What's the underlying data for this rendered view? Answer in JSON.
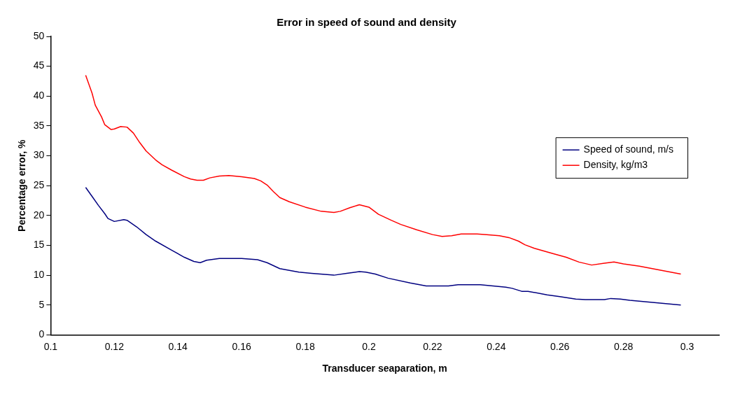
{
  "chart_data": {
    "type": "line",
    "title": "Error in speed of sound and density",
    "xlabel": "Transducer seaparation, m",
    "ylabel": "Percentage error, %",
    "xlim": [
      0.1,
      0.31
    ],
    "xticks": [
      0.1,
      0.12,
      0.14,
      0.16,
      0.18,
      0.2,
      0.22,
      0.24,
      0.26,
      0.28,
      0.3
    ],
    "ylim": [
      0,
      50
    ],
    "yticks": [
      0,
      5,
      10,
      15,
      20,
      25,
      30,
      35,
      40,
      45,
      50
    ],
    "grid": false,
    "legend": "right",
    "marker": "none",
    "line_style": "solid",
    "series": [
      {
        "name": "Speed of sound, m/s",
        "color": "#000080",
        "x": [
          0.111,
          0.113,
          0.115,
          0.117,
          0.118,
          0.12,
          0.123,
          0.124,
          0.127,
          0.13,
          0.133,
          0.138,
          0.142,
          0.145,
          0.147,
          0.149,
          0.153,
          0.16,
          0.165,
          0.168,
          0.172,
          0.178,
          0.182,
          0.189,
          0.193,
          0.197,
          0.199,
          0.202,
          0.206,
          0.213,
          0.218,
          0.225,
          0.228,
          0.235,
          0.239,
          0.243,
          0.245,
          0.248,
          0.25,
          0.256,
          0.26,
          0.265,
          0.268,
          0.274,
          0.276,
          0.279,
          0.282,
          0.298
        ],
        "values": [
          24.7,
          23.2,
          21.7,
          20.3,
          19.5,
          19.0,
          19.3,
          19.2,
          18.1,
          16.8,
          15.7,
          14.2,
          13.0,
          12.3,
          12.1,
          12.5,
          12.8,
          12.8,
          12.6,
          12.1,
          11.1,
          10.5,
          10.3,
          10.0,
          10.3,
          10.6,
          10.5,
          10.2,
          9.5,
          8.7,
          8.2,
          8.2,
          8.4,
          8.4,
          8.2,
          8.0,
          7.8,
          7.3,
          7.3,
          6.7,
          6.4,
          6.0,
          5.9,
          5.9,
          6.1,
          6.0,
          5.8,
          5.0
        ]
      },
      {
        "name": "Density, kg/m3",
        "color": "#ff0000",
        "x": [
          0.111,
          0.113,
          0.114,
          0.116,
          0.117,
          0.119,
          0.12,
          0.122,
          0.124,
          0.126,
          0.128,
          0.13,
          0.133,
          0.135,
          0.138,
          0.142,
          0.144,
          0.146,
          0.148,
          0.15,
          0.153,
          0.156,
          0.16,
          0.164,
          0.166,
          0.168,
          0.17,
          0.172,
          0.175,
          0.18,
          0.185,
          0.189,
          0.191,
          0.194,
          0.197,
          0.2,
          0.203,
          0.207,
          0.21,
          0.215,
          0.22,
          0.223,
          0.226,
          0.229,
          0.234,
          0.237,
          0.241,
          0.244,
          0.247,
          0.249,
          0.252,
          0.258,
          0.262,
          0.266,
          0.27,
          0.274,
          0.277,
          0.28,
          0.285,
          0.298
        ],
        "values": [
          43.5,
          40.5,
          38.5,
          36.5,
          35.2,
          34.4,
          34.5,
          34.9,
          34.8,
          33.8,
          32.2,
          30.8,
          29.3,
          28.5,
          27.6,
          26.5,
          26.1,
          25.9,
          25.9,
          26.3,
          26.6,
          26.7,
          26.5,
          26.2,
          25.8,
          25.1,
          24.0,
          23.0,
          22.3,
          21.4,
          20.7,
          20.5,
          20.7,
          21.3,
          21.8,
          21.4,
          20.2,
          19.2,
          18.5,
          17.6,
          16.8,
          16.5,
          16.6,
          16.9,
          16.9,
          16.8,
          16.6,
          16.3,
          15.7,
          15.1,
          14.5,
          13.6,
          13.0,
          12.2,
          11.7,
          12.0,
          12.2,
          11.9,
          11.5,
          10.2
        ]
      }
    ]
  }
}
